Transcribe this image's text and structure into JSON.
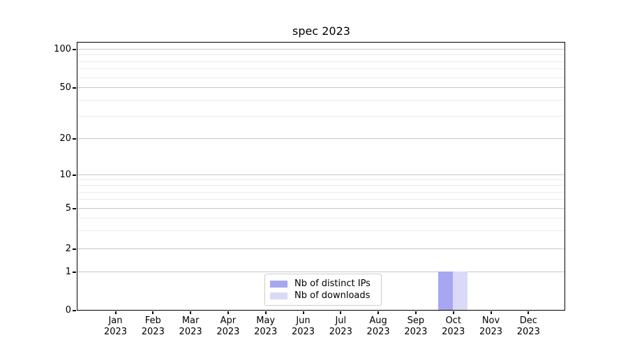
{
  "chart_data": {
    "type": "bar",
    "title": "spec 2023",
    "categories": [
      "Jan 2023",
      "Feb 2023",
      "Mar 2023",
      "Apr 2023",
      "May 2023",
      "Jun 2023",
      "Jul 2023",
      "Aug 2023",
      "Sep 2023",
      "Oct 2023",
      "Nov 2023",
      "Dec 2023"
    ],
    "series": [
      {
        "name": "Nb of distinct IPs",
        "color": "#a6a6f2",
        "values": [
          0,
          0,
          0,
          0,
          0,
          0,
          0,
          0,
          0,
          1,
          0,
          0
        ]
      },
      {
        "name": "Nb of downloads",
        "color": "#dadaf8",
        "values": [
          0,
          0,
          0,
          0,
          0,
          0,
          0,
          0,
          0,
          1,
          0,
          0
        ]
      }
    ],
    "yscale": "symlog",
    "ylim": [
      0,
      100
    ],
    "yticks": [
      0,
      1,
      2,
      5,
      10,
      20,
      50,
      100
    ],
    "yticks_minor": [
      3,
      4,
      6,
      7,
      8,
      9,
      30,
      40,
      60,
      70,
      80,
      90
    ],
    "grid": true,
    "legend_position": "lower center (inside axes)"
  },
  "colors": {
    "grid_major": "#c6c6c6",
    "grid_minor": "#ebebeb",
    "spine": "#000000",
    "legend_border": "#cccccc",
    "text": "#000000"
  }
}
